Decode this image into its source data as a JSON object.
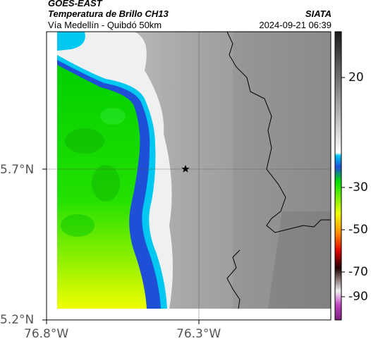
{
  "header": {
    "satellite": "GOES-EAST",
    "product": "Temperatura de Brillo CH13",
    "region": "Vía Medellín - Quibdó 50km",
    "agency": "SIATA",
    "datetime": "2024-09-21 06:39"
  },
  "map": {
    "latitude_ticks": [
      "5.7°N",
      "5.2°N"
    ],
    "longitude_ticks": [
      "76.8°W",
      "76.3°W"
    ],
    "marker": "star-icon",
    "gridlines": true
  },
  "colorbar": {
    "ticks": [
      "20",
      "-30",
      "-50",
      "-70",
      "-90"
    ],
    "colors": {
      "warm": "#8f8f8f",
      "cold_start": "#00c8f0",
      "cold_mid": "#1f4fd6",
      "green": "#00e000",
      "yellow": "#f0ff00",
      "red": "#e00000",
      "magenta": "#c040c0"
    }
  }
}
